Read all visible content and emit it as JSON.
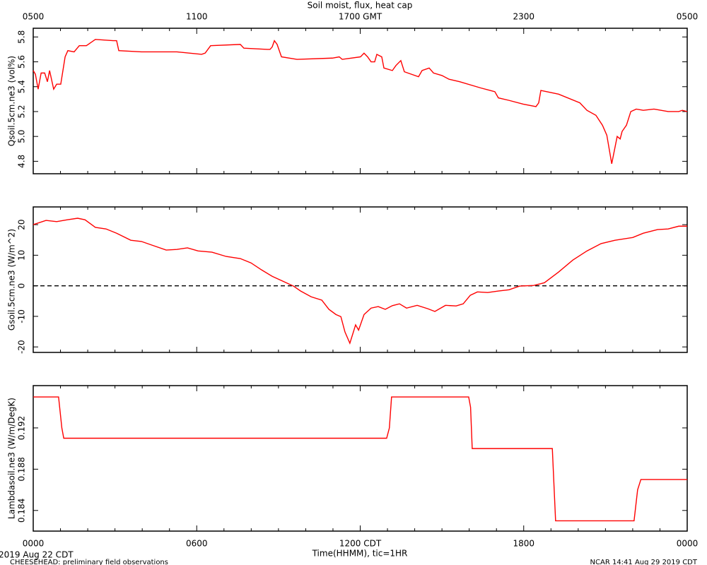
{
  "chart_data": [
    {
      "type": "line",
      "title": "Soil moist, flux, heat cap",
      "ylabel": "Qsoil.5cm.ne3 (vol%)",
      "xlim": [
        0,
        24
      ],
      "xticks": [
        0,
        6,
        12,
        18,
        24
      ],
      "x2ticks": [
        {
          "value": 0,
          "label": "0500"
        },
        {
          "value": 6,
          "label": "1100"
        },
        {
          "value": 12,
          "label": "1700 GMT"
        },
        {
          "value": 18,
          "label": "2300"
        },
        {
          "value": 24,
          "label": "0500"
        }
      ],
      "xminor_ticks": [
        1,
        2,
        3,
        4,
        5,
        7,
        8,
        9,
        10,
        11,
        13,
        14,
        15,
        16,
        17,
        19,
        20,
        21,
        22,
        23
      ],
      "ylim": [
        4.7,
        5.87
      ],
      "yticks": [
        4.8,
        {
          "value": 5,
          "label": "5.0"
        },
        5.2,
        5.4,
        5.6,
        5.8
      ],
      "x": [
        0,
        0.08,
        0.18,
        0.29,
        0.42,
        0.52,
        0.6,
        0.75,
        0.86,
        1.01,
        1.17,
        1.27,
        1.5,
        1.69,
        1.95,
        2.28,
        2.93,
        3.06,
        3.14,
        3.97,
        5.27,
        6.18,
        6.31,
        6.51,
        7.6,
        7.73,
        8.59,
        8.69,
        8.77,
        8.85,
        8.95,
        9.11,
        9.68,
        10.98,
        11.23,
        11.34,
        12.01,
        12.14,
        12.27,
        12.4,
        12.53,
        12.61,
        12.79,
        12.87,
        13.18,
        13.31,
        13.49,
        13.62,
        14.14,
        14.27,
        14.53,
        14.69,
        15.0,
        15.26,
        15.65,
        16.42,
        16.94,
        17.07,
        17.46,
        17.98,
        18.45,
        18.55,
        18.63,
        19.28,
        20.06,
        20.32,
        20.65,
        20.89,
        21.05,
        21.23,
        21.43,
        21.54,
        21.61,
        21.77,
        21.93,
        22.13,
        22.39,
        22.78,
        23.3,
        23.69,
        23.82,
        24
      ],
      "series": [
        {
          "color": "#ff0000",
          "values": [
            5.53,
            5.5,
            5.38,
            5.51,
            5.51,
            5.44,
            5.53,
            5.38,
            5.42,
            5.42,
            5.64,
            5.69,
            5.68,
            5.73,
            5.73,
            5.78,
            5.77,
            5.77,
            5.69,
            5.68,
            5.68,
            5.66,
            5.67,
            5.73,
            5.74,
            5.71,
            5.7,
            5.7,
            5.72,
            5.77,
            5.74,
            5.64,
            5.62,
            5.63,
            5.64,
            5.62,
            5.64,
            5.67,
            5.64,
            5.6,
            5.6,
            5.66,
            5.64,
            5.55,
            5.53,
            5.57,
            5.61,
            5.52,
            5.48,
            5.53,
            5.55,
            5.51,
            5.49,
            5.46,
            5.44,
            5.39,
            5.36,
            5.31,
            5.29,
            5.26,
            5.24,
            5.27,
            5.37,
            5.34,
            5.27,
            5.21,
            5.17,
            5.09,
            5.01,
            4.78,
            5.0,
            4.98,
            5.04,
            5.09,
            5.2,
            5.22,
            5.21,
            5.22,
            5.2,
            5.2,
            5.21,
            5.2
          ]
        }
      ]
    },
    {
      "type": "line",
      "ylabel": "Gsoil.5cm.ne3 (W/m^2)",
      "xlim": [
        0,
        24
      ],
      "xticks": [
        0,
        6,
        12,
        18,
        24
      ],
      "xminor_ticks": [
        1,
        2,
        3,
        4,
        5,
        7,
        8,
        9,
        10,
        11,
        13,
        14,
        15,
        16,
        17,
        19,
        20,
        21,
        22,
        23
      ],
      "ylim": [
        -21.8,
        25.8
      ],
      "yticks": [
        -20,
        -10,
        0,
        10,
        20
      ],
      "hline": {
        "y": 0,
        "style": "dashed"
      },
      "x": [
        0,
        0.47,
        0.86,
        1.25,
        1.63,
        1.9,
        2.28,
        2.67,
        3.06,
        3.58,
        3.97,
        4.36,
        4.88,
        5.27,
        5.66,
        6.05,
        6.56,
        7.08,
        7.6,
        7.99,
        8.38,
        8.77,
        9.16,
        9.55,
        9.81,
        10.2,
        10.59,
        10.85,
        11.11,
        11.29,
        11.44,
        11.62,
        11.75,
        11.83,
        11.94,
        12.14,
        12.4,
        12.66,
        12.92,
        13.18,
        13.44,
        13.7,
        14.09,
        14.48,
        14.74,
        15.13,
        15.52,
        15.78,
        16.04,
        16.3,
        16.68,
        17.07,
        17.46,
        17.85,
        18.37,
        18.76,
        19.28,
        19.8,
        20.32,
        20.84,
        21.35,
        22.0,
        22.39,
        22.91,
        23.3,
        23.69,
        24
      ],
      "series": [
        {
          "color": "#ff0000",
          "values": [
            20,
            21.4,
            21,
            21.6,
            22.1,
            21.6,
            19.1,
            18.6,
            17.2,
            14.9,
            14.5,
            13.3,
            11.7,
            11.9,
            12.4,
            11.4,
            11,
            9.6,
            8.9,
            7.5,
            5.2,
            3.1,
            1.5,
            -0.1,
            -1.7,
            -3.6,
            -4.7,
            -7.7,
            -9.4,
            -10.1,
            -15.1,
            -18.8,
            -15.1,
            -12.8,
            -14.5,
            -9.4,
            -7.3,
            -6.8,
            -7.7,
            -6.5,
            -5.9,
            -7.3,
            -6.4,
            -7.5,
            -8.4,
            -6.4,
            -6.6,
            -5.9,
            -3.1,
            -2,
            -2.2,
            -1.7,
            -1.3,
            -0.1,
            0.1,
            1,
            4.5,
            8.4,
            11.4,
            13.8,
            14.9,
            15.8,
            17.2,
            18.4,
            18.6,
            19.5,
            19.5
          ]
        }
      ]
    },
    {
      "type": "line",
      "ylabel": "Lambdasoil.ne3 (W/m/DegK)",
      "xlabel": "Time(HHMM), tic=1HR",
      "xlim": [
        0,
        24
      ],
      "xticks": [
        {
          "value": 0,
          "label": "0000"
        },
        {
          "value": 6,
          "label": "0600"
        },
        {
          "value": 12,
          "label": "1200 CDT"
        },
        {
          "value": 18,
          "label": "1800"
        },
        {
          "value": 24,
          "label": "0000"
        }
      ],
      "xminor_ticks": [
        1,
        2,
        3,
        4,
        5,
        7,
        8,
        9,
        10,
        11,
        13,
        14,
        15,
        16,
        17,
        19,
        20,
        21,
        22,
        23
      ],
      "ylim": [
        0.182,
        0.1961
      ],
      "yticks": [
        0.184,
        0.188,
        0.192
      ],
      "x": [
        0,
        0.93,
        1.05,
        1.12,
        12.97,
        13.07,
        13.15,
        15.98,
        16.05,
        16.11,
        19.05,
        19.17,
        22.05,
        22.18,
        22.3,
        24
      ],
      "series": [
        {
          "color": "#ff0000",
          "values": [
            0.195,
            0.195,
            0.192,
            0.191,
            0.191,
            0.192,
            0.195,
            0.195,
            0.194,
            0.19,
            0.19,
            0.183,
            0.183,
            0.186,
            0.187,
            0.187
          ]
        }
      ]
    }
  ],
  "footer": {
    "date": "2019 Aug 22 CDT",
    "project": "CHEESEHEAD: preliminary field observations",
    "stamp": "NCAR 14:41 Aug 29 2019 CDT"
  }
}
